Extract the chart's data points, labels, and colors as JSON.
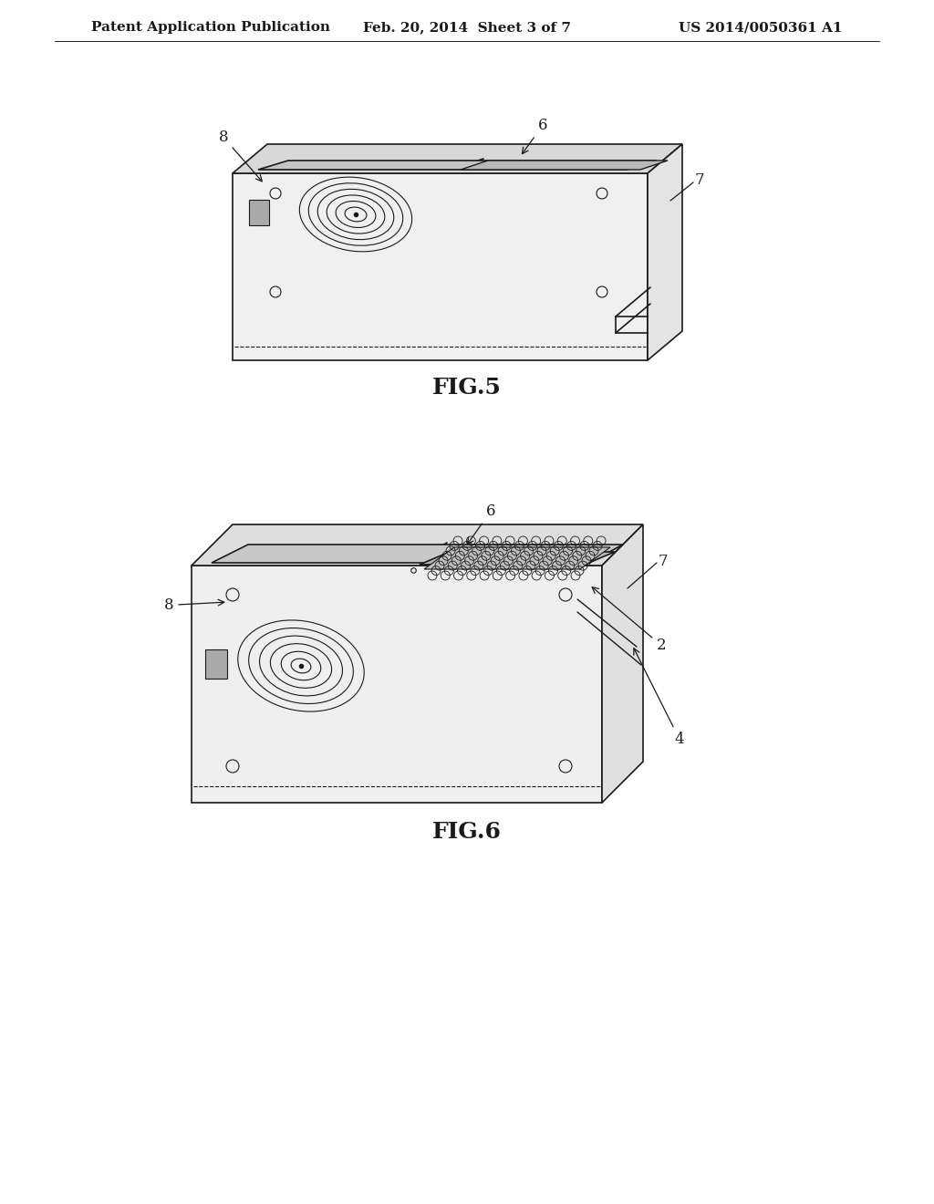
{
  "background_color": "#ffffff",
  "header_left": "Patent Application Publication",
  "header_center": "Feb. 20, 2014  Sheet 3 of 7",
  "header_right": "US 2014/0050361 A1",
  "fig5_label": "FIG.5",
  "fig6_label": "FIG.6",
  "header_fontsize": 11,
  "fig_label_fontsize": 18,
  "line_color": "#1a1a1a",
  "line_width": 1.2,
  "thin_line": 0.7,
  "thick_line": 1.8,
  "annotation_fontsize": 12
}
